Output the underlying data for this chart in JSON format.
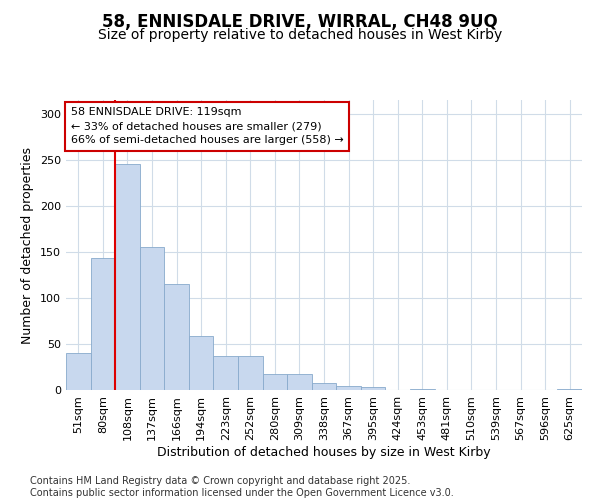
{
  "title_line1": "58, ENNISDALE DRIVE, WIRRAL, CH48 9UQ",
  "title_line2": "Size of property relative to detached houses in West Kirby",
  "xlabel": "Distribution of detached houses by size in West Kirby",
  "ylabel": "Number of detached properties",
  "bar_color": "#c8d8ee",
  "bar_edge_color": "#88aacc",
  "background_color": "#ffffff",
  "grid_color": "#d0dce8",
  "categories": [
    "51sqm",
    "80sqm",
    "108sqm",
    "137sqm",
    "166sqm",
    "194sqm",
    "223sqm",
    "252sqm",
    "280sqm",
    "309sqm",
    "338sqm",
    "367sqm",
    "395sqm",
    "424sqm",
    "453sqm",
    "481sqm",
    "510sqm",
    "539sqm",
    "567sqm",
    "596sqm",
    "625sqm"
  ],
  "values": [
    40,
    143,
    246,
    155,
    115,
    59,
    37,
    37,
    17,
    17,
    8,
    4,
    3,
    0,
    1,
    0,
    0,
    0,
    0,
    0,
    1
  ],
  "vline_x": 2,
  "vline_color": "#dd0000",
  "ylim": [
    0,
    315
  ],
  "yticks": [
    0,
    50,
    100,
    150,
    200,
    250,
    300
  ],
  "annotation_text": "58 ENNISDALE DRIVE: 119sqm\n← 33% of detached houses are smaller (279)\n66% of semi-detached houses are larger (558) →",
  "annotation_box_color": "#ffffff",
  "annotation_edge_color": "#cc0000",
  "footer_line1": "Contains HM Land Registry data © Crown copyright and database right 2025.",
  "footer_line2": "Contains public sector information licensed under the Open Government Licence v3.0.",
  "title_fontsize": 12,
  "subtitle_fontsize": 10,
  "label_fontsize": 9,
  "tick_fontsize": 8,
  "annot_fontsize": 8,
  "footer_fontsize": 7
}
